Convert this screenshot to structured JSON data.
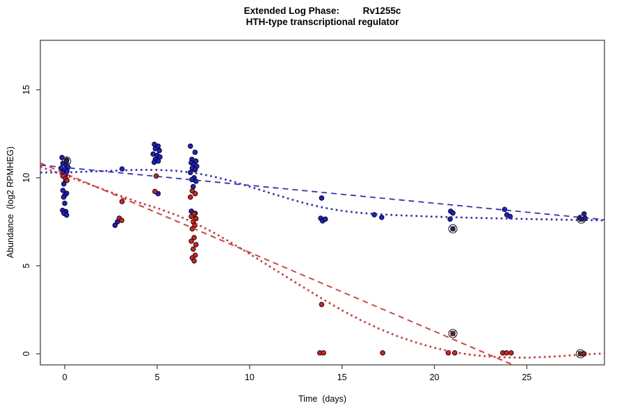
{
  "title": {
    "line1": "Extended Log Phase:         Rv1255c",
    "line2": "HTH-type transcriptional regulator"
  },
  "axes": {
    "xlabel": "Time  (days)",
    "ylabel": "Abundance  (log2 RPMHEG)"
  },
  "colors": {
    "blue_point": "#1f1fcc",
    "red_point": "#dc2020",
    "blue_line": "#2424e0",
    "red_line": "#ee2020",
    "point_outline": "#000000",
    "box": "#454545",
    "outlier_ring": "#222222"
  },
  "chart_data": {
    "type": "scatter",
    "title": "Extended Log Phase:         Rv1255c",
    "subtitle": "HTH-type transcriptional regulator",
    "xlabel": "Time  (days)",
    "ylabel": "Abundance  (log2 RPMHEG)",
    "xlim": [
      -1.32,
      29.2
    ],
    "ylim": [
      -0.63,
      17.81
    ],
    "xticks": [
      0,
      5,
      10,
      15,
      20,
      25
    ],
    "yticks": [
      0,
      5,
      10,
      15
    ],
    "grid": false,
    "legend": "none",
    "series": [
      {
        "name": "blue-scatter",
        "type": "scatter",
        "color": "#1f1fcc",
        "points": [
          [
            -0.15,
            11.15
          ],
          [
            0.1,
            11.0
          ],
          [
            -0.1,
            10.82
          ],
          [
            0.08,
            10.7
          ],
          [
            0.18,
            10.6
          ],
          [
            -0.2,
            10.55
          ],
          [
            0.0,
            10.48
          ],
          [
            0.12,
            10.38
          ],
          [
            -0.12,
            10.28
          ],
          [
            0.05,
            10.18
          ],
          [
            0.0,
            10.05
          ],
          [
            0.06,
            9.85
          ],
          [
            -0.05,
            9.65
          ],
          [
            -0.1,
            9.28
          ],
          [
            0.1,
            9.12
          ],
          [
            0.0,
            9.0
          ],
          [
            -0.06,
            8.9
          ],
          [
            0.0,
            8.55
          ],
          [
            -0.12,
            8.15
          ],
          [
            0.06,
            8.08
          ],
          [
            -0.04,
            7.98
          ],
          [
            0.1,
            7.88
          ],
          [
            3.1,
            10.5
          ],
          [
            2.85,
            7.5
          ],
          [
            2.72,
            7.3
          ],
          [
            4.85,
            11.9
          ],
          [
            5.05,
            11.8
          ],
          [
            4.9,
            11.65
          ],
          [
            5.12,
            11.55
          ],
          [
            4.78,
            11.35
          ],
          [
            5.0,
            11.28
          ],
          [
            5.15,
            11.18
          ],
          [
            4.9,
            11.05
          ],
          [
            5.06,
            10.95
          ],
          [
            4.84,
            10.88
          ],
          [
            5.05,
            9.1
          ],
          [
            6.8,
            11.8
          ],
          [
            7.05,
            11.45
          ],
          [
            6.88,
            11.05
          ],
          [
            7.1,
            10.95
          ],
          [
            6.84,
            10.85
          ],
          [
            7.0,
            10.75
          ],
          [
            7.14,
            10.65
          ],
          [
            6.9,
            10.55
          ],
          [
            7.05,
            10.45
          ],
          [
            6.8,
            10.3
          ],
          [
            7.0,
            10.0
          ],
          [
            6.88,
            9.9
          ],
          [
            7.1,
            9.8
          ],
          [
            6.95,
            9.5
          ],
          [
            6.85,
            8.1
          ],
          [
            7.05,
            7.98
          ],
          [
            13.9,
            8.85
          ],
          [
            13.85,
            7.7
          ],
          [
            13.95,
            7.55
          ],
          [
            14.1,
            7.65
          ],
          [
            16.75,
            7.9
          ],
          [
            17.15,
            7.75
          ],
          [
            20.88,
            8.1
          ],
          [
            21.0,
            8.0
          ],
          [
            20.85,
            7.65
          ],
          [
            23.8,
            8.2
          ],
          [
            23.92,
            7.9
          ],
          [
            24.1,
            7.8
          ],
          [
            28.1,
            7.95
          ],
          [
            27.85,
            7.72
          ],
          [
            28.15,
            7.7
          ]
        ]
      },
      {
        "name": "red-scatter",
        "type": "scatter",
        "color": "#dc2020",
        "points": [
          [
            -0.1,
            10.1
          ],
          [
            0.05,
            9.95
          ],
          [
            0.12,
            9.85
          ],
          [
            3.1,
            8.65
          ],
          [
            2.95,
            7.7
          ],
          [
            3.08,
            7.58
          ],
          [
            4.95,
            10.1
          ],
          [
            4.88,
            9.22
          ],
          [
            6.9,
            9.25
          ],
          [
            7.06,
            9.1
          ],
          [
            6.8,
            8.9
          ],
          [
            7.0,
            7.95
          ],
          [
            6.85,
            7.8
          ],
          [
            7.1,
            7.68
          ],
          [
            6.95,
            7.5
          ],
          [
            7.04,
            7.3
          ],
          [
            6.9,
            7.1
          ],
          [
            7.0,
            6.6
          ],
          [
            6.85,
            6.4
          ],
          [
            7.1,
            6.2
          ],
          [
            6.95,
            5.95
          ],
          [
            7.06,
            5.6
          ],
          [
            6.9,
            5.45
          ],
          [
            7.0,
            5.28
          ],
          [
            13.9,
            2.8
          ],
          [
            13.8,
            0.05
          ],
          [
            14.0,
            0.05
          ],
          [
            17.2,
            0.05
          ],
          [
            20.75,
            0.05
          ],
          [
            21.1,
            0.05
          ],
          [
            23.7,
            0.05
          ],
          [
            23.9,
            0.05
          ],
          [
            24.15,
            0.05
          ],
          [
            28.1,
            0.0
          ]
        ]
      },
      {
        "name": "blue-circled-outliers",
        "type": "scatter-circled",
        "color": "#1f1fcc",
        "points": [
          [
            0.1,
            10.95
          ],
          [
            21.0,
            7.1
          ],
          [
            27.95,
            7.65
          ]
        ]
      },
      {
        "name": "red-circled-outliers",
        "type": "scatter-circled",
        "color": "#dc2020",
        "points": [
          [
            21.0,
            1.15
          ],
          [
            27.9,
            0.0
          ]
        ]
      },
      {
        "name": "blue-dashed-fit",
        "type": "line",
        "style": "dashed",
        "color": "#2424e0",
        "points": [
          [
            -1.32,
            10.72
          ],
          [
            29.2,
            7.62
          ]
        ]
      },
      {
        "name": "red-dashed-fit",
        "type": "line",
        "style": "dashed",
        "color": "#ee2020",
        "points": [
          [
            -1.32,
            10.84
          ],
          [
            24.25,
            -0.63
          ]
        ]
      },
      {
        "name": "blue-dotted-fit",
        "type": "line",
        "style": "dotted",
        "color": "#2424e0",
        "points": [
          [
            -1.32,
            10.3
          ],
          [
            0,
            10.3
          ],
          [
            2,
            10.38
          ],
          [
            4,
            10.45
          ],
          [
            5,
            10.45
          ],
          [
            6,
            10.4
          ],
          [
            7,
            10.28
          ],
          [
            8,
            10.08
          ],
          [
            9,
            9.82
          ],
          [
            10,
            9.5
          ],
          [
            11,
            9.17
          ],
          [
            12,
            8.85
          ],
          [
            13,
            8.55
          ],
          [
            14,
            8.3
          ],
          [
            15,
            8.12
          ],
          [
            16,
            8.0
          ],
          [
            17,
            7.93
          ],
          [
            18,
            7.87
          ],
          [
            19,
            7.83
          ],
          [
            20,
            7.79
          ],
          [
            21,
            7.76
          ],
          [
            22,
            7.73
          ],
          [
            23,
            7.7
          ],
          [
            24,
            7.68
          ],
          [
            25,
            7.66
          ],
          [
            26,
            7.64
          ],
          [
            27,
            7.62
          ],
          [
            28,
            7.6
          ],
          [
            29.2,
            7.58
          ]
        ]
      },
      {
        "name": "red-dotted-fit",
        "type": "line",
        "style": "dotted",
        "color": "#ee2020",
        "points": [
          [
            -1.32,
            10.62
          ],
          [
            0,
            10.15
          ],
          [
            1,
            9.76
          ],
          [
            2,
            9.37
          ],
          [
            3,
            8.98
          ],
          [
            4,
            8.6
          ],
          [
            5,
            8.28
          ],
          [
            6,
            7.9
          ],
          [
            7,
            7.45
          ],
          [
            8,
            6.92
          ],
          [
            9,
            6.32
          ],
          [
            10,
            5.68
          ],
          [
            11,
            5.02
          ],
          [
            12,
            4.37
          ],
          [
            13,
            3.72
          ],
          [
            14,
            3.08
          ],
          [
            15,
            2.47
          ],
          [
            16,
            1.92
          ],
          [
            17,
            1.43
          ],
          [
            18,
            1.0
          ],
          [
            19,
            0.64
          ],
          [
            20,
            0.34
          ],
          [
            21,
            0.1
          ],
          [
            22,
            -0.06
          ],
          [
            23,
            -0.16
          ],
          [
            24,
            -0.21
          ],
          [
            25,
            -0.22
          ],
          [
            26,
            -0.18
          ],
          [
            27,
            -0.12
          ],
          [
            28,
            -0.04
          ],
          [
            29.2,
            0.02
          ]
        ]
      }
    ]
  }
}
